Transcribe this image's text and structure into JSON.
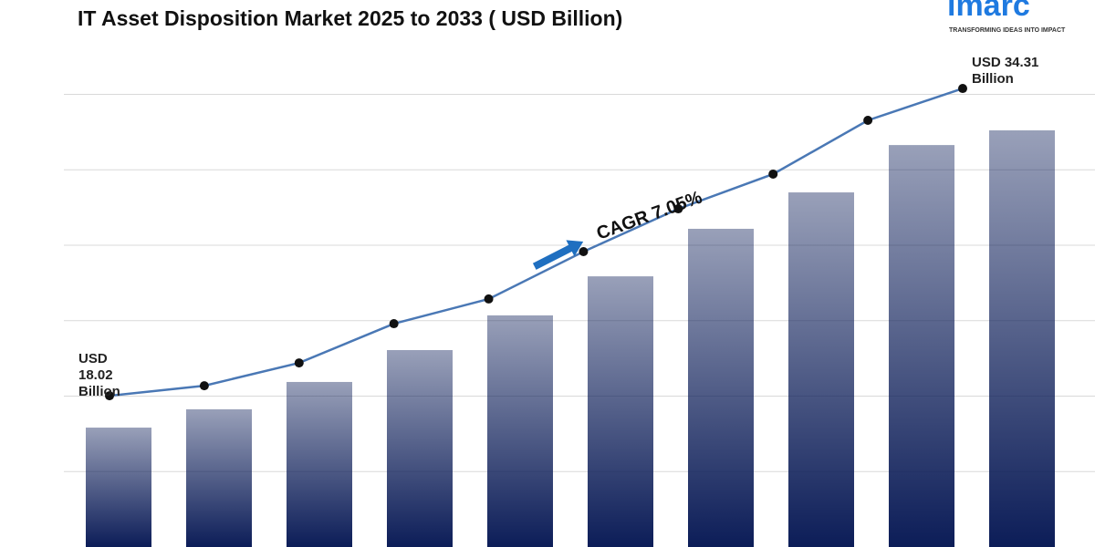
{
  "chart_data": {
    "type": "bar",
    "title": "IT Asset Disposition Market 2025 to 2033 ( USD Billion)",
    "categories": [
      null,
      null,
      null,
      null,
      null,
      null,
      null,
      null,
      null,
      null
    ],
    "series": [
      {
        "type": "bar",
        "color": "#0c1d58",
        "values": [
          16.33,
          17.3,
          18.75,
          20.44,
          22.28,
          24.35,
          26.87,
          28.8,
          31.31,
          32.09
        ]
      },
      {
        "type": "line",
        "color": "#4a78b5",
        "values": [
          18.02,
          18.55,
          19.76,
          21.84,
          23.15,
          25.66,
          27.93,
          29.77,
          32.62,
          34.31
        ],
        "value_labels": [
          [
            "USD",
            "18.02",
            "Billion"
          ],
          null,
          null,
          null,
          null,
          null,
          null,
          null,
          null,
          [
            "USD 34.31",
            "Billion"
          ]
        ]
      }
    ],
    "annotation": "CAGR 7.05%",
    "ylim": [
      10,
      39
    ],
    "yticks": [
      14,
      18,
      22,
      26,
      30,
      34
    ],
    "grid": true
  },
  "logo": {
    "name": "imarc",
    "tagline": "TRANSFORMING IDEAS INTO IMPACT"
  }
}
